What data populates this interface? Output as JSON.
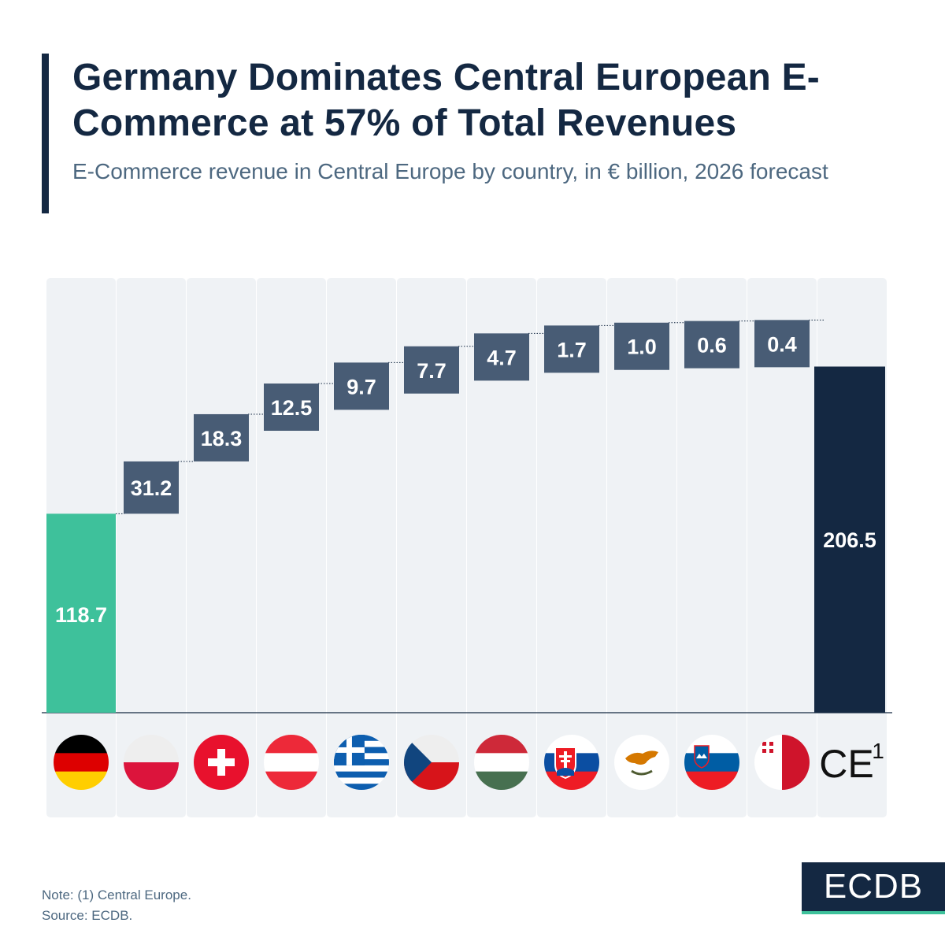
{
  "header": {
    "title": "Germany Dominates Central European E-Commerce at 57% of Total Revenues",
    "subtitle": "E-Commerce revenue in Central Europe by country, in € billion, 2026 forecast"
  },
  "footer": {
    "note": "Note: (1) Central Europe.",
    "source": "Source: ECDB.",
    "logo": "ECDB"
  },
  "colors": {
    "germany_bar": "#3ec19b",
    "step_box": "#485c75",
    "total_bar": "#142842",
    "column_bg": "#eff2f5",
    "text_dark": "#142842"
  },
  "chart_data": {
    "type": "bar",
    "variant": "waterfall",
    "categories": [
      "Germany",
      "Poland",
      "Switzerland",
      "Austria",
      "Greece",
      "Czech Republic",
      "Hungary",
      "Slovakia",
      "Cyprus",
      "Slovenia",
      "Malta",
      "CE¹"
    ],
    "category_icons": [
      "flag-germany-icon",
      "flag-poland-icon",
      "flag-switzerland-icon",
      "flag-austria-icon",
      "flag-greece-icon",
      "flag-czech-republic-icon",
      "flag-hungary-icon",
      "flag-slovakia-icon",
      "flag-cyprus-icon",
      "flag-slovenia-icon",
      "flag-malta-icon",
      "ce-label"
    ],
    "values": [
      118.7,
      31.2,
      18.3,
      12.5,
      9.7,
      7.7,
      4.7,
      1.7,
      1.0,
      0.6,
      0.4,
      206.5
    ],
    "labels": [
      "118.7",
      "31.2",
      "18.3",
      "12.5",
      "9.7",
      "7.7",
      "4.7",
      "1.7",
      "1.0",
      "0.6",
      "0.4",
      "206.5"
    ],
    "total_label": "CE",
    "total_superscript": "1",
    "unit": "€ billion",
    "grid": false,
    "legend": "none"
  }
}
